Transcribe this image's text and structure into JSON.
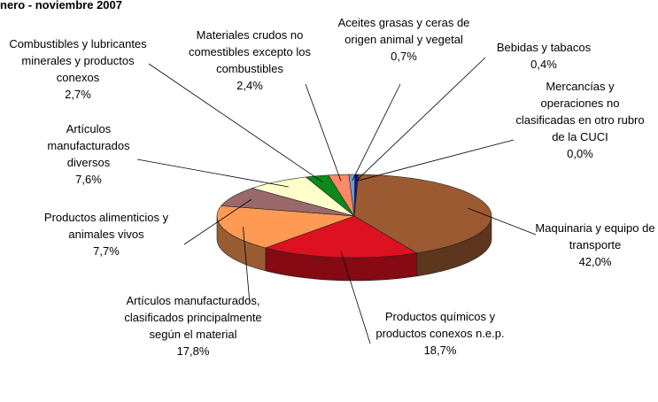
{
  "chart_data": {
    "type": "pie3d",
    "title": "nero - noviembre 2007",
    "categories": [
      "Mercancías y operaciones no clasificadas en otro rubro de la CUCI",
      "Maquinaria y equipo de transporte",
      "Productos químicos y productos conexos n.e.p.",
      "Artículos manufacturados, clasificados principalmente según el material",
      "Productos alimenticios y animales vivos",
      "Artículos manufacturados diversos",
      "Combustibles y lubricantes minerales y productos conexos",
      "Materiales crudos no comestibles excepto los combustibles",
      "Aceites grasas y ceras de origen animal y vegetal",
      "Bebidas y tabacos"
    ],
    "values": [
      0.0,
      42.0,
      18.7,
      17.8,
      7.7,
      7.6,
      2.7,
      2.4,
      0.7,
      0.4
    ],
    "value_labels": [
      "0,0%",
      "42,0%",
      "18,7%",
      "17,8%",
      "7,7%",
      "7,6%",
      "2,7%",
      "2,4%",
      "0,7%",
      "0,4%"
    ],
    "colors": [
      "#ffffff",
      "#9c5a32",
      "#dd1120",
      "#ff9a55",
      "#9a6a6a",
      "#ffffcc",
      "#0a8a1a",
      "#ff8866",
      "#7799cc",
      "#0a1a99"
    ]
  }
}
